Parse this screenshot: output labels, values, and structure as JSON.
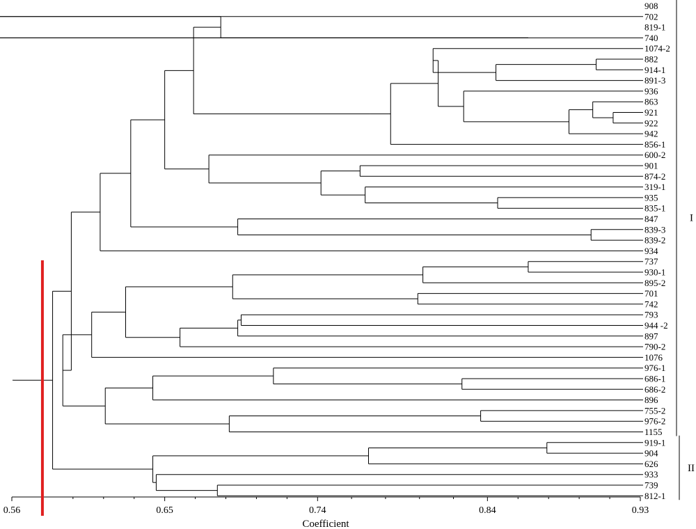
{
  "chart_data": {
    "type": "dendrogram",
    "xlabel": "Coefficient",
    "xlim": [
      0.56,
      0.93
    ],
    "xticks": [
      {
        "value": 0.56,
        "label": "0.56"
      },
      {
        "value": 0.65,
        "label": "0.65"
      },
      {
        "value": 0.74,
        "label": "0.74"
      },
      {
        "value": 0.84,
        "label": "0.84"
      },
      {
        "value": 0.93,
        "label": "0.93"
      }
    ],
    "minor_ticks": [
      0.578,
      0.596,
      0.614,
      0.632,
      0.668,
      0.686,
      0.704,
      0.722,
      0.76,
      0.78,
      0.8,
      0.82,
      0.858,
      0.876,
      0.894,
      0.912
    ],
    "leaves": [
      "908",
      "702",
      "819-1",
      "740",
      "1074-2",
      "882",
      "914-1",
      "891-3",
      "936",
      "863",
      "921",
      "922",
      "942",
      "856-1",
      "600-2",
      "901",
      "874-2",
      "319-1",
      "935",
      "835-1",
      "847",
      "839-3",
      "839-2",
      "934",
      "737",
      "930-1",
      "895-2",
      "701",
      "742",
      "793",
      "944 -2",
      "897",
      "790-2",
      "1076",
      "976-1",
      "686-1",
      "686-2",
      "896",
      "755-2",
      "976-2",
      "1155",
      "919-1",
      "904",
      "626",
      "933",
      "739",
      "812-1"
    ],
    "tree": [
      "1",
      [
        "2",
        [
          "3",
          [
            "4",
            [
              "5",
              [
                "6",
                [
                  "7",
                  [
                    "8",
                    [
                      "908",
                      "702"
                    ],
                    [
                      "9",
                      [
                        "819-1",
                        "740"
                      ]
                    ]
                  ],
                  [
                    "10",
                    [
                      "11",
                      [
                        "12",
                        [
                          "13",
                          "1074-2",
                          [
                            "14",
                            [
                              "15",
                              "882",
                              "914-1"
                            ],
                            "891-3"
                          ]
                        ],
                        [
                          "16",
                          "936",
                          [
                            "17",
                            [
                              "18",
                              "863",
                              [
                                "19",
                                "921",
                                "922"
                              ]
                            ],
                            "942"
                          ]
                        ]
                      ],
                      "856-1"
                    ]
                  ]
                ],
                [
                  "20",
                  "600-2",
                  [
                    "21",
                    [
                      "22",
                      "901",
                      "874-2"
                    ],
                    [
                      "23",
                      "319-1",
                      [
                        "24",
                        "935",
                        "835-1"
                      ]
                    ]
                  ]
                ]
              ],
              [
                "25",
                "847",
                [
                  "26",
                  "839-3",
                  "839-2"
                ]
              ]
            ],
            "934"
          ],
          [
            "27",
            [
              "28",
              [
                "29",
                [
                  "30",
                  [
                    "31",
                    [
                      "32",
                      "737",
                      "930-1"
                    ],
                    "895-2"
                  ],
                  [
                    "33",
                    "701",
                    "742"
                  ]
                ],
                [
                  "34",
                  [
                    "35",
                    [
                      "36",
                      "793",
                      "944 -2"
                    ],
                    "897"
                  ],
                  "790-2"
                ]
              ],
              "1076"
            ],
            [
              "37",
              [
                "38",
                [
                  "39",
                  "976-1",
                  [
                    "40",
                    "686-1",
                    "686-2"
                  ]
                ],
                "896"
              ],
              [
                "41",
                [
                  "42",
                  "755-2",
                  "976-2"
                ],
                "1155"
              ]
            ]
          ]
        ],
        [
          "43",
          [
            "44",
            [
              "45",
              "919-1",
              "904"
            ],
            "626"
          ],
          [
            "46",
            "933",
            [
              "47",
              "739",
              "812-1"
            ]
          ]
        ]
      ]
    ],
    "heights": {
      "1": 0.561,
      "2": 0.584,
      "3": 0.595,
      "4": 0.612,
      "5": 0.63,
      "6": 0.65,
      "7": 0.667,
      "8": 0.683,
      "9": 0.864,
      "10": 0.771,
      "11": 0.783,
      "12": 0.811,
      "13": 0.808,
      "14": 0.845,
      "15": 0.904,
      "16": 0.826,
      "17": 0.888,
      "18": 0.902,
      "19": 0.914,
      "20": 0.676,
      "21": 0.742,
      "22": 0.765,
      "23": 0.768,
      "24": 0.846,
      "25": 0.693,
      "26": 0.901,
      "27": 0.59,
      "28": 0.607,
      "29": 0.627,
      "30": 0.69,
      "31": 0.802,
      "32": 0.864,
      "33": 0.799,
      "34": 0.659,
      "35": 0.693,
      "36": 0.695,
      "37": 0.615,
      "38": 0.643,
      "39": 0.714,
      "40": 0.825,
      "41": 0.688,
      "42": 0.836,
      "43": 0.643,
      "44": 0.77,
      "45": 0.875,
      "46": 0.645,
      "47": 0.681
    },
    "cut_line": 0.578,
    "cut_line_color": "#e02020",
    "groups": [
      {
        "label": "I",
        "first_leaf": "908",
        "last_leaf": "1155"
      },
      {
        "label": "II",
        "first_leaf": "919-1",
        "last_leaf": "812-1"
      }
    ]
  }
}
